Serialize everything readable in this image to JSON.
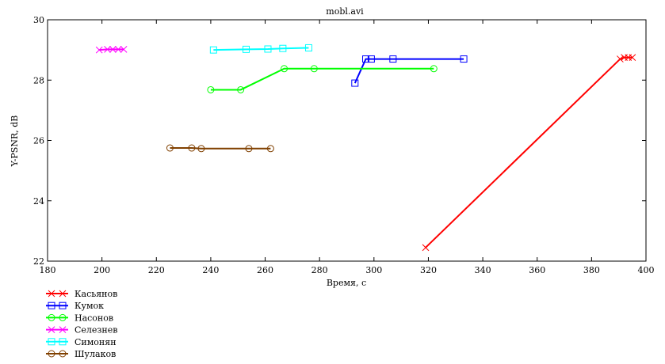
{
  "chart_data": {
    "type": "line",
    "title": "mobl.avi",
    "xlabel": "Время, с",
    "ylabel": "Y-PSNR, dB",
    "xlim": [
      180,
      400
    ],
    "ylim": [
      22,
      30
    ],
    "xticks": [
      180,
      200,
      220,
      240,
      260,
      280,
      300,
      320,
      340,
      360,
      380,
      400
    ],
    "yticks": [
      22,
      24,
      26,
      28,
      30
    ],
    "grid": false,
    "legend_placement": "below-left",
    "series": [
      {
        "name": "Касьянов",
        "color": "#ff0000",
        "marker": "x",
        "x": [
          319,
          390.5,
          392,
          393.5,
          395
        ],
        "y": [
          22.45,
          28.7,
          28.75,
          28.75,
          28.75
        ]
      },
      {
        "name": "Кумок",
        "color": "#0000ff",
        "marker": "square",
        "x": [
          293,
          297,
          299,
          307,
          333
        ],
        "y": [
          27.9,
          28.7,
          28.7,
          28.7,
          28.7
        ]
      },
      {
        "name": "Насонов",
        "color": "#00ff00",
        "marker": "circle",
        "x": [
          240,
          251,
          267,
          278,
          322
        ],
        "y": [
          27.68,
          27.68,
          28.38,
          28.38,
          28.38
        ]
      },
      {
        "name": "Селезнев",
        "color": "#ff00ff",
        "marker": "x",
        "x": [
          199,
          202,
          204,
          206,
          208
        ],
        "y": [
          29.0,
          29.02,
          29.02,
          29.02,
          29.02
        ]
      },
      {
        "name": "Симонян",
        "color": "#00ffff",
        "marker": "square",
        "x": [
          241,
          253,
          261,
          266.5,
          276
        ],
        "y": [
          29.0,
          29.02,
          29.03,
          29.05,
          29.07
        ]
      },
      {
        "name": "Шулаков",
        "color": "#804000",
        "marker": "circle",
        "x": [
          225,
          233,
          236.5,
          254,
          262
        ],
        "y": [
          25.75,
          25.75,
          25.73,
          25.73,
          25.73
        ]
      }
    ]
  }
}
